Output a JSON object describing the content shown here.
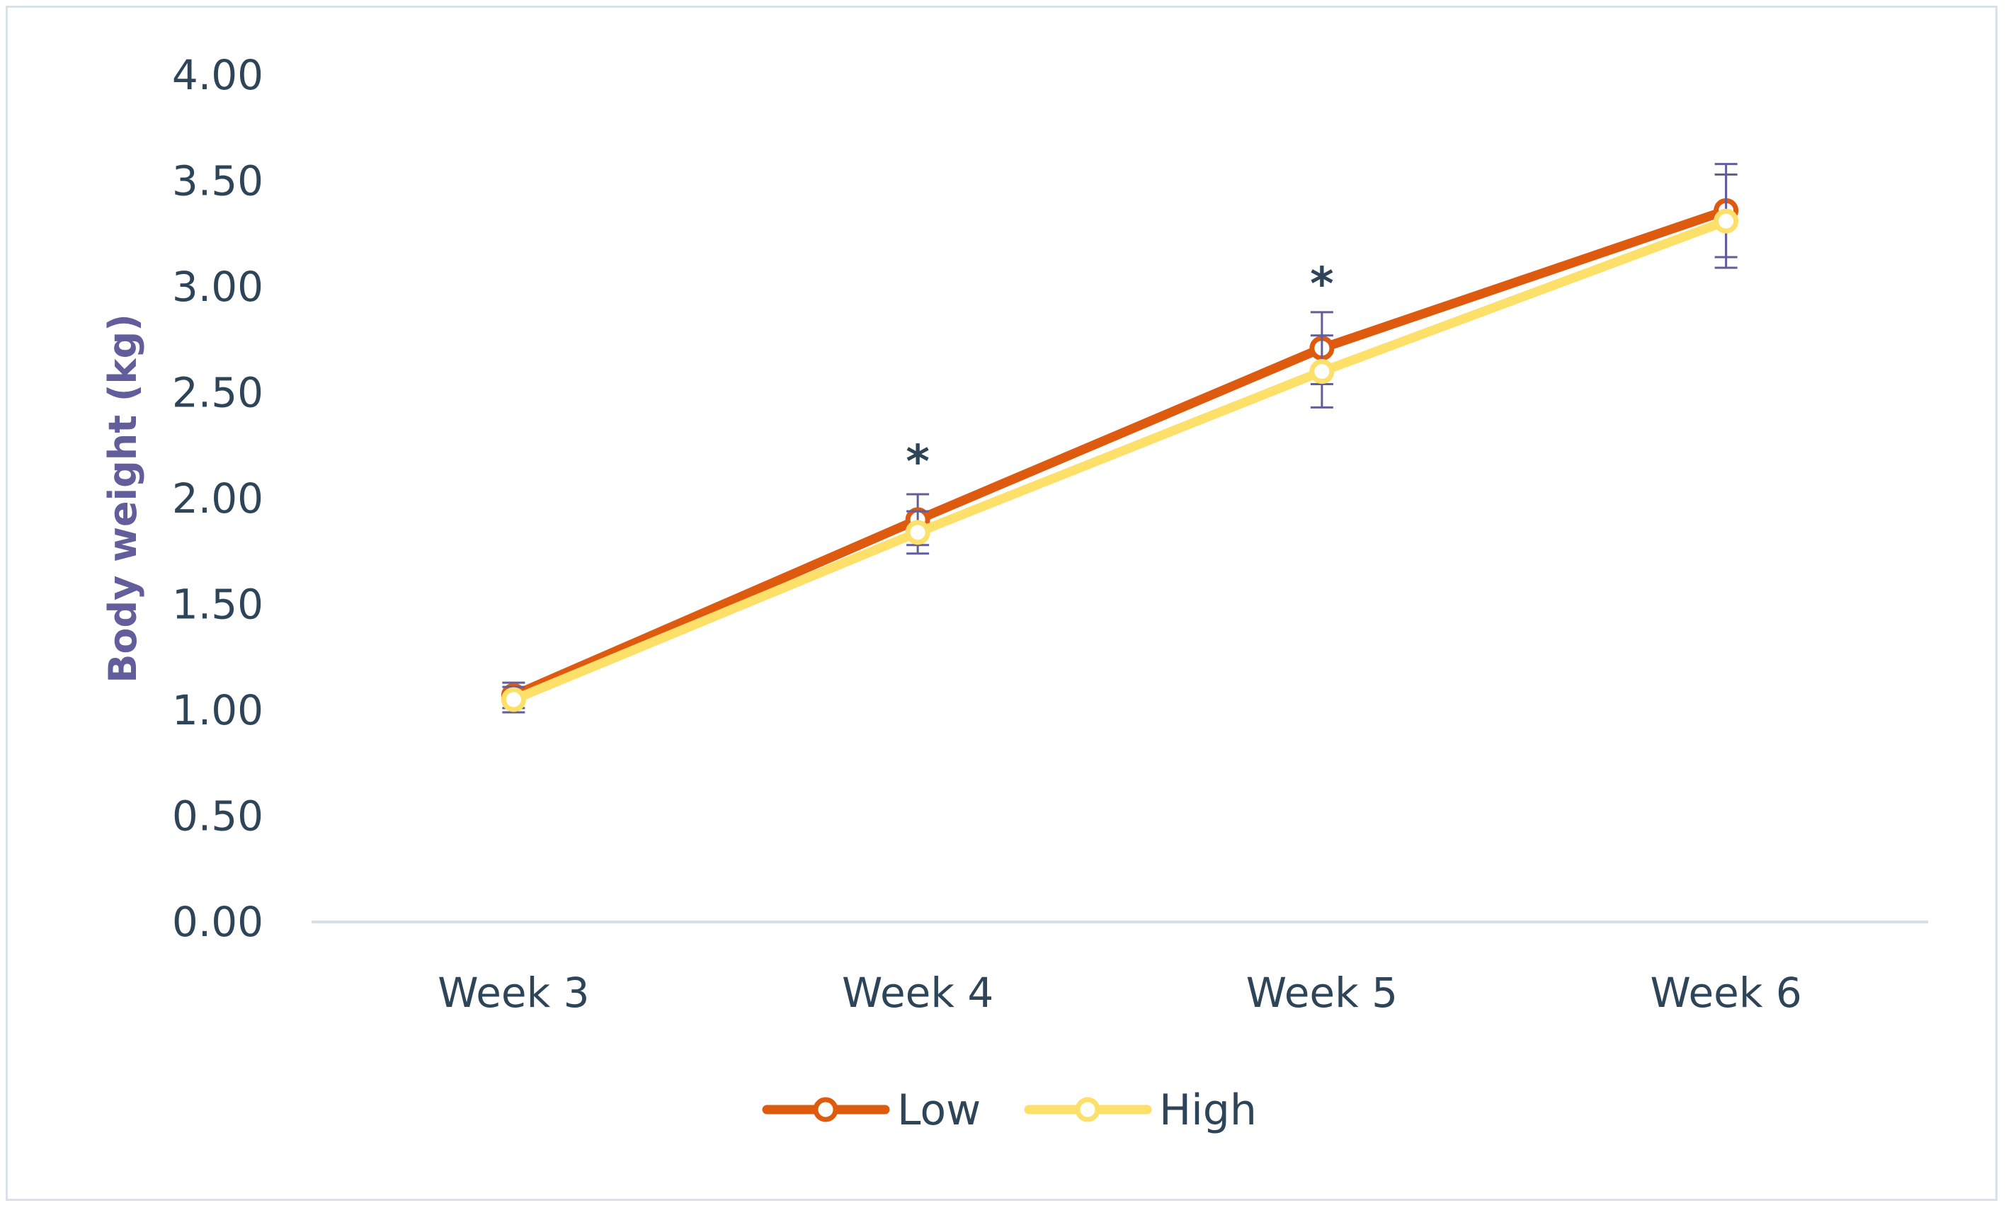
{
  "chart_data": {
    "type": "line",
    "title": "",
    "xlabel": "",
    "ylabel": "Body weight (kg)",
    "categories": [
      "Week 3",
      "Week 4",
      "Week 5",
      "Week 6"
    ],
    "ylim": [
      0,
      4
    ],
    "yticks": [
      "0.00",
      "0.50",
      "1.00",
      "1.50",
      "2.00",
      "2.50",
      "3.00",
      "3.50",
      "4.00"
    ],
    "grid": false,
    "legend_position": "bottom-center",
    "error_bar_color": "#625d9b",
    "series": [
      {
        "name": "Low",
        "color": "#dd5a0e",
        "values": [
          1.07,
          1.9,
          2.71,
          3.36
        ],
        "error": [
          0.06,
          0.12,
          0.17,
          0.22
        ]
      },
      {
        "name": "High",
        "color": "#fde06a",
        "values": [
          1.05,
          1.84,
          2.6,
          3.31
        ],
        "error": [
          0.06,
          0.1,
          0.17,
          0.22
        ]
      }
    ],
    "annotations": [
      {
        "category": "Week 4",
        "text": "*",
        "value": 2.22
      },
      {
        "category": "Week 5",
        "text": "*",
        "value": 3.06
      }
    ]
  }
}
